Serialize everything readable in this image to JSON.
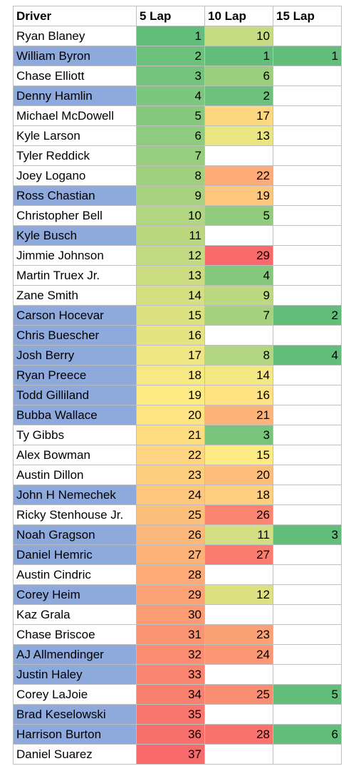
{
  "headers": [
    "Driver",
    "5 Lap",
    "10 Lap",
    "15 Lap"
  ],
  "rows": [
    {
      "driver": "Ryan Blaney",
      "highlight": false,
      "lap5": "1",
      "lap10": "10",
      "lap15": ""
    },
    {
      "driver": "William Byron",
      "highlight": true,
      "lap5": "2",
      "lap10": "1",
      "lap15": "1"
    },
    {
      "driver": "Chase Elliott",
      "highlight": false,
      "lap5": "3",
      "lap10": "6",
      "lap15": ""
    },
    {
      "driver": "Denny Hamlin",
      "highlight": true,
      "lap5": "4",
      "lap10": "2",
      "lap15": ""
    },
    {
      "driver": "Michael McDowell",
      "highlight": false,
      "lap5": "5",
      "lap10": "17",
      "lap15": ""
    },
    {
      "driver": "Kyle Larson",
      "highlight": false,
      "lap5": "6",
      "lap10": "13",
      "lap15": ""
    },
    {
      "driver": "Tyler Reddick",
      "highlight": false,
      "lap5": "7",
      "lap10": "",
      "lap15": ""
    },
    {
      "driver": "Joey Logano",
      "highlight": false,
      "lap5": "8",
      "lap10": "22",
      "lap15": ""
    },
    {
      "driver": "Ross Chastian",
      "highlight": true,
      "lap5": "9",
      "lap10": "19",
      "lap15": ""
    },
    {
      "driver": "Christopher Bell",
      "highlight": false,
      "lap5": "10",
      "lap10": "5",
      "lap15": ""
    },
    {
      "driver": "Kyle Busch",
      "highlight": true,
      "lap5": "11",
      "lap10": "",
      "lap15": ""
    },
    {
      "driver": "Jimmie Johnson",
      "highlight": false,
      "lap5": "12",
      "lap10": "29",
      "lap15": ""
    },
    {
      "driver": "Martin Truex Jr.",
      "highlight": false,
      "lap5": "13",
      "lap10": "4",
      "lap15": ""
    },
    {
      "driver": "Zane Smith",
      "highlight": false,
      "lap5": "14",
      "lap10": "9",
      "lap15": ""
    },
    {
      "driver": "Carson Hocevar",
      "highlight": true,
      "lap5": "15",
      "lap10": "7",
      "lap15": "2"
    },
    {
      "driver": "Chris Buescher",
      "highlight": true,
      "lap5": "16",
      "lap10": "",
      "lap15": ""
    },
    {
      "driver": "Josh Berry",
      "highlight": true,
      "lap5": "17",
      "lap10": "8",
      "lap15": "4"
    },
    {
      "driver": "Ryan Preece",
      "highlight": true,
      "lap5": "18",
      "lap10": "14",
      "lap15": ""
    },
    {
      "driver": "Todd Gilliland",
      "highlight": true,
      "lap5": "19",
      "lap10": "16",
      "lap15": ""
    },
    {
      "driver": "Bubba Wallace",
      "highlight": true,
      "lap5": "20",
      "lap10": "21",
      "lap15": ""
    },
    {
      "driver": "Ty Gibbs",
      "highlight": false,
      "lap5": "21",
      "lap10": "3",
      "lap15": ""
    },
    {
      "driver": "Alex Bowman",
      "highlight": false,
      "lap5": "22",
      "lap10": "15",
      "lap15": ""
    },
    {
      "driver": "Austin Dillon",
      "highlight": false,
      "lap5": "23",
      "lap10": "20",
      "lap15": ""
    },
    {
      "driver": "John H Nemechek",
      "highlight": true,
      "lap5": "24",
      "lap10": "18",
      "lap15": ""
    },
    {
      "driver": "Ricky Stenhouse Jr.",
      "highlight": false,
      "lap5": "25",
      "lap10": "26",
      "lap15": ""
    },
    {
      "driver": "Noah Gragson",
      "highlight": true,
      "lap5": "26",
      "lap10": "11",
      "lap15": "3"
    },
    {
      "driver": "Daniel Hemric",
      "highlight": true,
      "lap5": "27",
      "lap10": "27",
      "lap15": ""
    },
    {
      "driver": "Austin Cindric",
      "highlight": false,
      "lap5": "28",
      "lap10": "",
      "lap15": ""
    },
    {
      "driver": "Corey Heim",
      "highlight": true,
      "lap5": "29",
      "lap10": "12",
      "lap15": ""
    },
    {
      "driver": "Kaz Grala",
      "highlight": false,
      "lap5": "30",
      "lap10": "",
      "lap15": ""
    },
    {
      "driver": "Chase Briscoe",
      "highlight": false,
      "lap5": "31",
      "lap10": "23",
      "lap15": ""
    },
    {
      "driver": "AJ Allmendinger",
      "highlight": true,
      "lap5": "32",
      "lap10": "24",
      "lap15": ""
    },
    {
      "driver": "Justin Haley",
      "highlight": true,
      "lap5": "33",
      "lap10": "",
      "lap15": ""
    },
    {
      "driver": "Corey LaJoie",
      "highlight": false,
      "lap5": "34",
      "lap10": "25",
      "lap15": "5"
    },
    {
      "driver": "Brad Keselowski",
      "highlight": true,
      "lap5": "35",
      "lap10": "",
      "lap15": ""
    },
    {
      "driver": "Harrison Burton",
      "highlight": true,
      "lap5": "36",
      "lap10": "28",
      "lap15": "6"
    },
    {
      "driver": "Daniel Suarez",
      "highlight": false,
      "lap5": "37",
      "lap10": "",
      "lap15": ""
    }
  ],
  "colors": {
    "driver_highlight": "#8ea9db",
    "scale_low": "#63be7b",
    "scale_mid": "#ffeb84",
    "scale_high": "#f8696b"
  }
}
